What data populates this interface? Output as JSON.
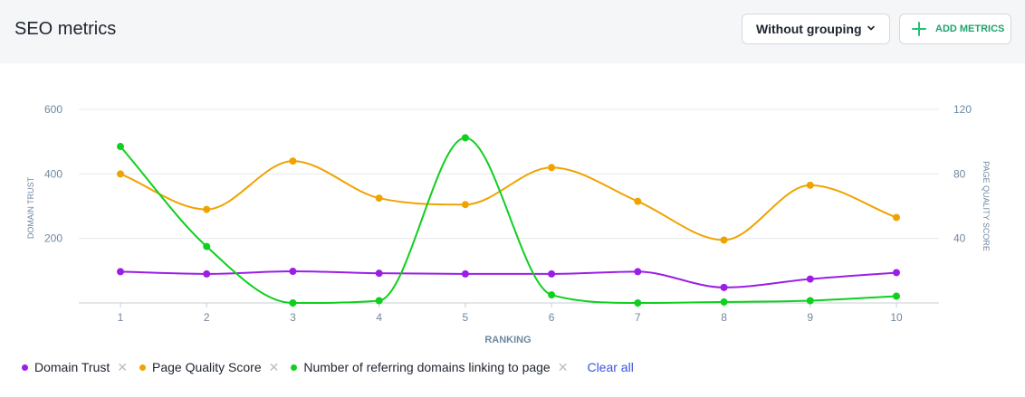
{
  "header": {
    "title": "SEO metrics",
    "grouping_label": "Without grouping",
    "add_metrics_label": "ADD METRICS"
  },
  "legend": {
    "items": [
      {
        "label": "Domain Trust",
        "color": "#9b1ee6"
      },
      {
        "label": "Page Quality Score",
        "color": "#f0a300"
      },
      {
        "label": "Number of referring domains linking to page",
        "color": "#0fcf1f"
      }
    ],
    "clear_all": "Clear all"
  },
  "chart_data": {
    "type": "line",
    "xlabel": "RANKING",
    "ylabel_left": "DOMAIN TRUST",
    "ylabel_right": "PAGE QUALITY SCORE",
    "x": [
      1,
      2,
      3,
      4,
      5,
      6,
      7,
      8,
      9,
      10
    ],
    "left_ticks": [
      200,
      400,
      600
    ],
    "right_ticks": [
      40,
      80,
      120
    ],
    "ylim_left": [
      0,
      600
    ],
    "ylim_right": [
      0,
      120
    ],
    "grid": true,
    "legend_position": "bottom-left",
    "series": [
      {
        "name": "Domain Trust",
        "axis": "left",
        "color": "#9b1ee6",
        "values": [
          97,
          90,
          98,
          92,
          90,
          90,
          97,
          48,
          74,
          94
        ]
      },
      {
        "name": "Page Quality Score",
        "axis": "right",
        "color": "#f0a300",
        "values": [
          80,
          58,
          88,
          65,
          61,
          84,
          63,
          39,
          73,
          53
        ]
      },
      {
        "name": "Number of referring domains linking to page",
        "axis": "left",
        "color": "#0fcf1f",
        "values": [
          485,
          175,
          0,
          7,
          512,
          25,
          0,
          3,
          7,
          21
        ]
      }
    ]
  }
}
